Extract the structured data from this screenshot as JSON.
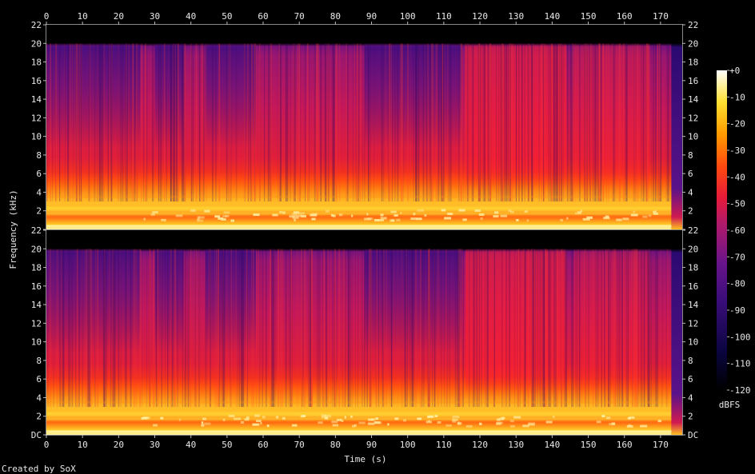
{
  "chart_data": {
    "type": "heatmap",
    "title": "",
    "xlabel": "Time (s)",
    "ylabel": "Frequency (kHz)",
    "xlim": [
      0,
      176
    ],
    "ylim": [
      0,
      22
    ],
    "x_ticks": [
      0,
      10,
      20,
      30,
      40,
      50,
      60,
      70,
      80,
      90,
      100,
      110,
      120,
      130,
      140,
      150,
      160,
      170
    ],
    "y_ticks": [
      "DC",
      "2",
      "4",
      "6",
      "8",
      "10",
      "12",
      "14",
      "16",
      "18",
      "20",
      "22"
    ],
    "channels": 2,
    "audio_end_s": 173,
    "content_max_khz": 20,
    "colorbar": {
      "label": "dBFS",
      "ticks": [
        "+0",
        "-10",
        "-20",
        "-30",
        "-40",
        "-50",
        "-60",
        "-70",
        "-80",
        "-90",
        "-100",
        "-110",
        "-120"
      ],
      "range_db": [
        -120,
        0
      ]
    },
    "intensity_bands_khz_db": [
      {
        "from_khz": 0,
        "to_khz": 1,
        "db": -22
      },
      {
        "from_khz": 1,
        "to_khz": 3,
        "db": -40
      },
      {
        "from_khz": 3,
        "to_khz": 6,
        "db": -48
      },
      {
        "from_khz": 6,
        "to_khz": 20,
        "db": -70
      }
    ],
    "grid": false,
    "legend": "colorbar-right"
  },
  "footer_text": "Created by SoX",
  "colors": {
    "background": "#000000",
    "axis_text": "#e8e8e8"
  }
}
